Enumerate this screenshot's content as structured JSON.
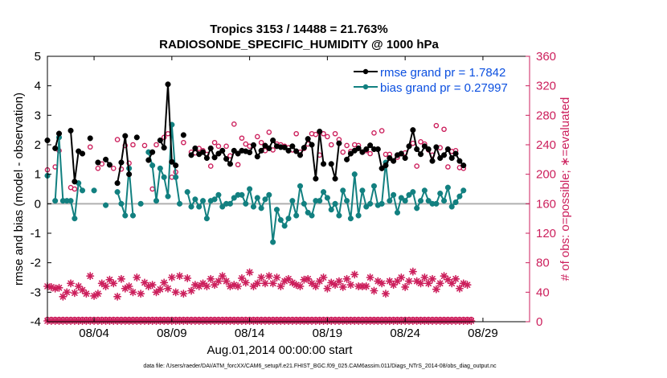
{
  "chart_data": {
    "type": "line",
    "title_line1": "Tropics 3153 / 14488 = 21.763%",
    "title_line2": "RADIOSONDE_SPECIFIC_HUMIDITY @ 1000 hPa",
    "xlabel": "Aug.01,2014 00:00:00 start",
    "ylabel_left": "rmse and bias (model - observation)",
    "ylabel_right": "# of obs: o=possible; ∗=evaluated",
    "footer": "data file: /Users/raeder/DAI/ATM_forcXX/CAM6_setup/f.e21.FHIST_BGC.f09_025.CAM6assim.011/Diags_NTrS_2014-08/obs_diag_output.nc",
    "xlim": [
      1,
      32
    ],
    "ylim_left": [
      -4,
      5
    ],
    "ylim_right": [
      0,
      360
    ],
    "x_ticks": [
      4,
      9,
      14,
      19,
      24,
      29
    ],
    "x_tick_labels": [
      "08/04",
      "08/09",
      "08/14",
      "08/19",
      "08/24",
      "08/29"
    ],
    "y_ticks_left": [
      "5",
      "4",
      "3",
      "2",
      "1",
      "0",
      "-1",
      "-2",
      "-3",
      "-4"
    ],
    "y_ticks_right": [
      "360",
      "320",
      "280",
      "240",
      "200",
      "160",
      "120",
      "80",
      "40",
      "0"
    ],
    "colors": {
      "rmse": "#000000",
      "bias": "#128080",
      "obs": "#cc1f5c",
      "legend_text": "#0b4fe0",
      "zero_line": "#b0b0b0"
    },
    "series": [
      {
        "name": "rmse",
        "legend": "rmse grand pr = 1.7842",
        "axis": "left",
        "values": [
          2.15,
          null,
          1.88,
          2.38,
          null,
          null,
          2.48,
          0.75,
          1.78,
          1.7,
          null,
          2.22,
          null,
          1.4,
          null,
          1.5,
          1.32,
          null,
          0.7,
          1.4,
          2.3,
          1.0,
          null,
          2.25,
          null,
          null,
          1.48,
          1.75,
          null,
          2.15,
          1.9,
          4.05,
          1.42,
          1.3,
          null,
          2.33,
          null,
          1.65,
          1.88,
          1.68,
          1.75,
          1.55,
          1.88,
          1.57,
          1.7,
          1.8,
          1.52,
          1.35,
          1.8,
          1.7,
          1.8,
          1.78,
          1.74,
          1.99,
          1.6,
          1.8,
          1.97,
          1.88,
          2.15,
          1.95,
          1.92,
          1.91,
          1.8,
          1.95,
          1.78,
          1.65,
          1.9,
          2.2,
          2.0,
          0.85,
          2.45,
          1.35,
          null,
          1.35,
          0.85,
          2.05,
          null,
          1.5,
          1.7,
          1.8,
          1.88,
          1.75,
          1.85,
          1.98,
          1.85,
          1.85,
          1.2,
          1.3,
          1.55,
          1.45,
          1.65,
          1.7,
          1.55,
          1.95,
          2.5,
          1.85,
          1.68,
          1.95,
          1.85,
          1.45,
          1.92,
          1.55,
          1.65,
          1.85,
          1.55,
          1.7,
          1.45,
          1.3,
          null
        ],
        "start_day": 1,
        "step_days": 0.25
      },
      {
        "name": "bias",
        "legend": "bias grand pr = 0.27997",
        "axis": "left",
        "values": [
          0.95,
          null,
          0.1,
          2.25,
          0.1,
          0.1,
          0.1,
          -0.5,
          0.7,
          0.45,
          null,
          null,
          0.45,
          null,
          null,
          -0.05,
          null,
          null,
          0.4,
          0.0,
          -0.4,
          1.2,
          -0.4,
          null,
          0.0,
          null,
          1.75,
          1.3,
          0.1,
          1.2,
          0.9,
          0.25,
          2.68,
          0.9,
          0.0,
          null,
          0.4,
          -0.1,
          0.15,
          -0.1,
          0.1,
          -0.5,
          0.1,
          0.15,
          0.3,
          -0.1,
          0.0,
          0.0,
          0.2,
          0.3,
          0.3,
          0.0,
          0.5,
          -0.1,
          0.2,
          -0.15,
          0.15,
          0.3,
          -1.3,
          -0.2,
          -0.55,
          -0.75,
          -0.5,
          0.1,
          -0.4,
          0.6,
          0.0,
          -0.3,
          -0.4,
          0.1,
          0.1,
          0.4,
          0.2,
          -0.2,
          0.0,
          -0.4,
          0.45,
          0.1,
          -0.5,
          1.0,
          -0.4,
          0.45,
          -0.1,
          0.0,
          0.6,
          -0.05,
          0.0,
          1.4,
          0.1,
          0.3,
          -0.3,
          0.2,
          0.1,
          0.3,
          0.4,
          -0.15,
          0.1,
          0.45,
          0.1,
          0.0,
          0.0,
          0.35,
          0.1,
          0.55,
          -0.1,
          0.05,
          0.25,
          0.45,
          null
        ],
        "start_day": 1,
        "step_days": 0.25
      },
      {
        "name": "obs possible",
        "axis": "right",
        "marker": "circle",
        "values": [
          206,
          null,
          210,
          232,
          null,
          null,
          182,
          180,
          null,
          null,
          null,
          237,
          null,
          208,
          214,
          null,
          null,
          208,
          247,
          207,
          239,
          215,
          240,
          null,
          null,
          239,
          null,
          180,
          240,
          null,
          250,
          255,
          196,
          203,
          null,
          243,
          null,
          230,
          229,
          235,
          232,
          227,
          211,
          243,
          238,
          232,
          238,
          225,
          268,
          213,
          249,
          241,
          238,
          239,
          251,
          243,
          232,
          257,
          233,
          241,
          240,
          238,
          236,
          233,
          255,
          230,
          235,
          241,
          255,
          254,
          226,
          255,
          251,
          240,
          255,
          247,
          230,
          239,
          231,
          240,
          239,
          230,
          232,
          228,
          256,
          234,
          259,
          227,
          227,
          218,
          223,
          228,
          229,
          238,
          242,
          211,
          244,
          241,
          233,
          226,
          266,
          236,
          261,
          210,
          231,
          232,
          209,
          208,
          null
        ],
        "start_day": 1,
        "step_days": 0.25
      },
      {
        "name": "obs evaluated",
        "axis": "right",
        "marker": "asterisk",
        "values": [
          48,
          47,
          45,
          46,
          34,
          40,
          52,
          39,
          48,
          43,
          38,
          62,
          35,
          38,
          52,
          48,
          57,
          52,
          34,
          58,
          45,
          48,
          40,
          60,
          38,
          53,
          48,
          50,
          40,
          44,
          53,
          45,
          60,
          40,
          62,
          38,
          59,
          42,
          50,
          48,
          52,
          48,
          58,
          50,
          55,
          62,
          55,
          48,
          50,
          48,
          59,
          53,
          67,
          48,
          52,
          60,
          52,
          62,
          52,
          60,
          48,
          55,
          58,
          53,
          50,
          48,
          57,
          58,
          52,
          48,
          55,
          60,
          45,
          53,
          50,
          55,
          47,
          58,
          50,
          64,
          48,
          48,
          48,
          60,
          42,
          55,
          52,
          38,
          55,
          50,
          55,
          60,
          47,
          55,
          68,
          55,
          52,
          60,
          52,
          58,
          44,
          52,
          62,
          57,
          52,
          58,
          45,
          52,
          50
        ],
        "start_day": 1,
        "step_days": 0.25
      },
      {
        "name": "obs evaluated (low)",
        "axis": "right",
        "marker": "asterisk",
        "values": [
          0,
          0,
          0,
          0,
          0,
          0,
          0,
          0,
          0,
          0,
          0,
          0,
          0,
          0,
          0,
          0,
          0,
          0,
          0,
          0,
          0,
          0,
          0,
          0,
          0,
          0,
          0,
          0,
          0,
          0,
          0,
          0,
          0,
          0,
          0,
          0,
          0,
          0,
          0,
          0,
          0,
          0,
          0,
          0,
          0,
          0,
          0,
          0,
          0,
          0,
          0,
          0,
          0,
          0,
          0,
          0,
          0,
          0,
          0,
          0,
          0,
          0,
          0,
          0,
          0,
          0,
          0,
          0,
          0,
          0,
          0,
          0,
          0,
          0,
          0,
          0,
          0,
          0,
          0,
          0,
          0,
          0,
          0,
          0,
          0,
          0,
          0,
          0,
          0,
          0,
          0,
          0,
          0,
          0,
          0,
          0,
          0,
          0,
          0,
          0,
          0,
          0,
          0,
          0,
          0,
          0,
          0,
          0,
          0,
          0
        ],
        "start_day": 1,
        "step_days": 0.25
      },
      {
        "name": "obs possible (low)",
        "axis": "right",
        "marker": "circle",
        "values": [
          0,
          0,
          0,
          0,
          0,
          0,
          0,
          0,
          0,
          0,
          0,
          0,
          0,
          0,
          0,
          0,
          0,
          0,
          0,
          0,
          0,
          0,
          0,
          0,
          0,
          0,
          0,
          0,
          0,
          0,
          0,
          0,
          0,
          0,
          0,
          0,
          0,
          0,
          0,
          0,
          0,
          0,
          0,
          0,
          0,
          0,
          0,
          0,
          0,
          0,
          0,
          0,
          0,
          0,
          0,
          0,
          0,
          0,
          0,
          0,
          0,
          0,
          0,
          0,
          0,
          0,
          0,
          0,
          0,
          0,
          0,
          0,
          0,
          0,
          0,
          0,
          0,
          0,
          0,
          0,
          0,
          0,
          0,
          0,
          0,
          0,
          0,
          0,
          0,
          0,
          0,
          0,
          0,
          0,
          0,
          0,
          0,
          0,
          0,
          0,
          0,
          0,
          0,
          0,
          0,
          0,
          0,
          0,
          0,
          0
        ],
        "start_day": 1,
        "step_days": 0.25
      }
    ]
  }
}
